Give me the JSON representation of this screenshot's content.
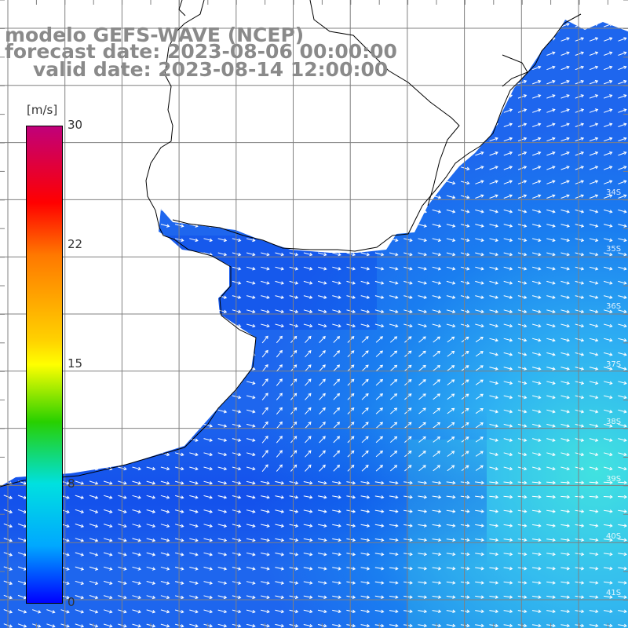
{
  "title": {
    "line1": "modelo GEFS-WAVE (NCEP)",
    "line2": "forecast date: 2023-08-06 00:00:00",
    "line3": "valid date: 2023-08-14 12:00:00"
  },
  "colorbar": {
    "units": "[m/s]",
    "ticks": [
      {
        "label": "30",
        "value": 30
      },
      {
        "label": "22",
        "value": 22
      },
      {
        "label": "15",
        "value": 15
      },
      {
        "label": "8",
        "value": 8
      },
      {
        "label": "0",
        "value": 0
      }
    ],
    "colors": [
      "#c0007a",
      "#ff0000",
      "#ff7800",
      "#ffff00",
      "#28d000",
      "#00e0e0",
      "#00a8ff",
      "#0000ff"
    ]
  },
  "lat_labels": [
    "34S",
    "35S",
    "36S",
    "37S",
    "38S",
    "39S",
    "40S",
    "41S"
  ],
  "colors": {
    "land": "#ffffff",
    "coast": "#000000",
    "grid": "#808080",
    "arrow": "#ffffff",
    "title": "#8a8a8a"
  }
}
